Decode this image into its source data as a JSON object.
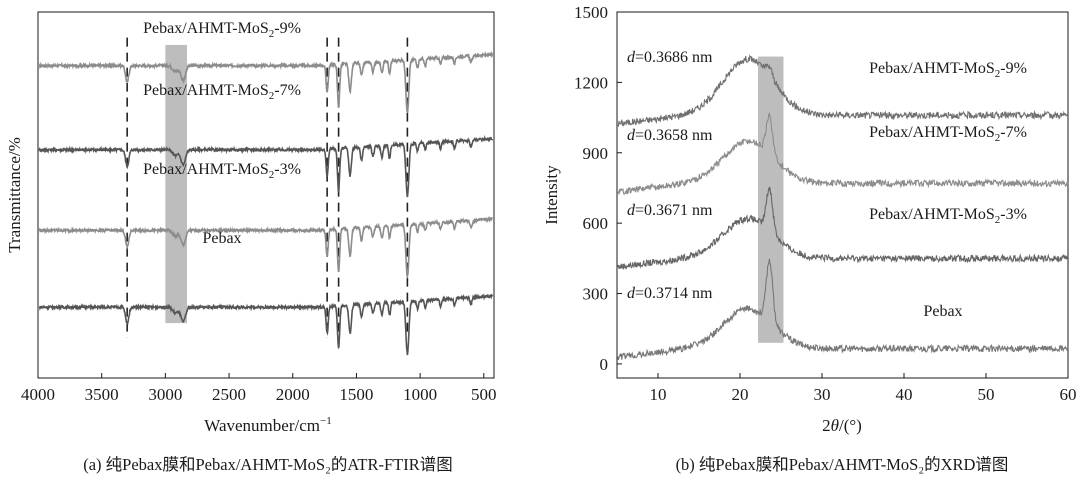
{
  "charts": [
    {
      "id": "ftir",
      "type": "line",
      "caption": "(a) 纯Pebax膜和Pebax/AHMT-MoS₂的ATR-FTIR谱图",
      "xlabel_main": "Wavenumber/cm",
      "xlabel_sup": "−1",
      "ylabel": "Transmittance/%",
      "x_ticks": [
        "4000",
        "3500",
        "3000",
        "2500",
        "2000",
        "1500",
        "1000",
        "500"
      ],
      "xlim": [
        4000,
        420
      ],
      "highlight_band": [
        3000,
        2830
      ],
      "dashed_markers": [
        3300,
        1730,
        1640,
        1100
      ],
      "series": [
        {
          "name_prefix": "Pebax/AHMT-MoS",
          "name_sub": "2",
          "name_suffix": "-9%",
          "color": "#8c8c8c",
          "baseline": 0.85
        },
        {
          "name_prefix": "Pebax/AHMT-MoS",
          "name_sub": "2",
          "name_suffix": "-7%",
          "color": "#555555",
          "baseline": 0.62
        },
        {
          "name_prefix": "Pebax/AHMT-MoS",
          "name_sub": "2",
          "name_suffix": "-3%",
          "color": "#8c8c8c",
          "baseline": 0.4
        },
        {
          "name_prefix": "",
          "name_sub": "",
          "name_suffix": "Pebax",
          "color": "#555555",
          "baseline": 0.19
        }
      ]
    },
    {
      "id": "xrd",
      "type": "line",
      "caption": "(b) 纯Pebax膜和Pebax/AHMT-MoS₂的XRD谱图",
      "xlabel": "2θ/(°)",
      "xlabel_theta": "θ",
      "xlabel_two": "2",
      "xlabel_rest": "/(°)",
      "ylabel": "Intensity",
      "x_ticks": [
        "10",
        "20",
        "30",
        "40",
        "50",
        "60"
      ],
      "y_ticks": [
        "0",
        "300",
        "600",
        "900",
        "1200",
        "1500"
      ],
      "xlim": [
        5,
        60
      ],
      "ylim": [
        -60,
        1500
      ],
      "highlight_band": [
        22.2,
        25.3
      ],
      "series": [
        {
          "name_prefix": "Pebax/AHMT-MoS",
          "name_sub": "2",
          "name_suffix": "-9%",
          "d_value": "=0.3686 nm",
          "color": "#707070",
          "base": 1060,
          "hump": 240,
          "peak": 40
        },
        {
          "name_prefix": "Pebax/AHMT-MoS",
          "name_sub": "2",
          "name_suffix": "-7%",
          "d_value": "=0.3658 nm",
          "color": "#8c8c8c",
          "base": 770,
          "hump": 180,
          "peak": 160
        },
        {
          "name_prefix": "Pebax/AHMT-MoS",
          "name_sub": "2",
          "name_suffix": "-3%",
          "d_value": "=0.3671 nm",
          "color": "#666666",
          "base": 450,
          "hump": 170,
          "peak": 180
        },
        {
          "name_prefix": "",
          "name_sub": "",
          "name_suffix": "Pebax",
          "d_value": "=0.3714 nm",
          "color": "#777777",
          "base": 65,
          "hump": 170,
          "peak": 260
        }
      ],
      "d_symbol": "d"
    }
  ]
}
